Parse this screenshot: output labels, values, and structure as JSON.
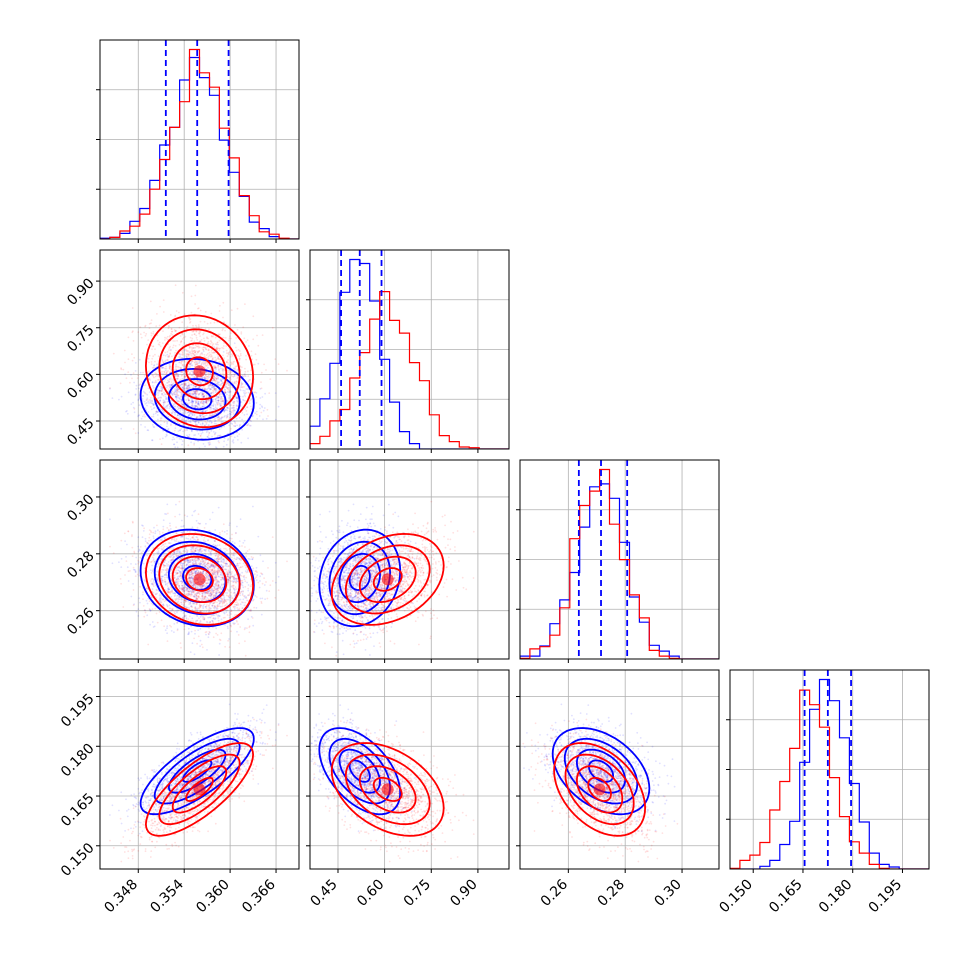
{
  "chart_data": {
    "type": "corner",
    "grid": true,
    "colors": {
      "series_a": "#0000ff",
      "series_b": "#ff0000",
      "quantile_lines": "#0000ff"
    },
    "parameters": [
      {
        "range": [
          0.343,
          0.369
        ],
        "ticks": [
          0.348,
          0.354,
          0.36,
          0.366
        ],
        "tick_labels": [
          "0.348",
          "0.354",
          "0.360",
          "0.366"
        ],
        "quantiles": [
          0.3516,
          0.3557,
          0.3598
        ]
      },
      {
        "range": [
          0.36,
          1.0
        ],
        "ticks": [
          0.45,
          0.6,
          0.75,
          0.9
        ],
        "tick_labels": [
          "0.45",
          "0.60",
          "0.75",
          "0.90"
        ],
        "quantiles": [
          0.46,
          0.52,
          0.59
        ]
      },
      {
        "range": [
          0.243,
          0.313
        ],
        "ticks": [
          0.26,
          0.28,
          0.3
        ],
        "tick_labels": [
          "0.26",
          "0.28",
          "0.30"
        ],
        "quantiles": [
          0.2637,
          0.2715,
          0.2807
        ]
      },
      {
        "range": [
          0.143,
          0.203
        ],
        "ticks": [
          0.15,
          0.165,
          0.18,
          0.195
        ],
        "tick_labels": [
          "0.150",
          "0.165",
          "0.180",
          "0.195"
        ],
        "quantiles": [
          0.1655,
          0.1725,
          0.1795
        ]
      }
    ],
    "series": [
      {
        "color": "#0000ff",
        "means": [
          0.3557,
          0.52,
          0.2715,
          0.1725
        ],
        "sds": [
          0.0037,
          0.065,
          0.0085,
          0.0065
        ],
        "correlations": [
          [
            0,
            1,
            -0.1
          ],
          [
            0,
            2,
            -0.15
          ],
          [
            0,
            3,
            0.75
          ],
          [
            1,
            2,
            0.15
          ],
          [
            1,
            3,
            -0.5
          ],
          [
            2,
            3,
            -0.4
          ]
        ]
      },
      {
        "color": "#ff0000",
        "means": [
          0.356,
          0.61,
          0.271,
          0.167
        ],
        "sds": [
          0.0035,
          0.09,
          0.008,
          0.007
        ],
        "correlations": [
          [
            0,
            1,
            -0.1
          ],
          [
            0,
            2,
            -0.15
          ],
          [
            0,
            3,
            0.75
          ],
          [
            1,
            2,
            0.3
          ],
          [
            1,
            3,
            -0.4
          ],
          [
            2,
            3,
            -0.4
          ]
        ]
      }
    ]
  }
}
